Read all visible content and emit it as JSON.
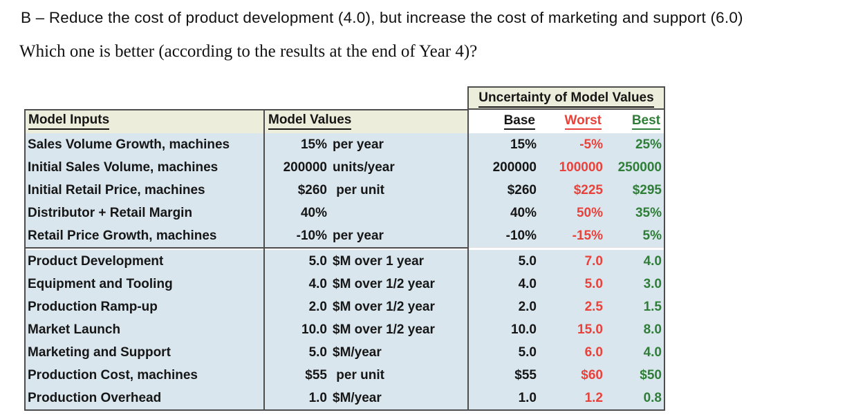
{
  "heading": {
    "line1": "B – Reduce the cost of product development (4.0), but increase the cost of marketing and support (6.0)",
    "line2": "Which one is better (according to the results at the end of Year 4)?"
  },
  "table": {
    "left_headers": {
      "inputs": "Model Inputs",
      "values": "Model Values"
    },
    "uncertainty": {
      "title": "Uncertainty of Model Values",
      "col_base": "Base",
      "col_worst": "Worst",
      "col_best": "Best"
    },
    "colors": {
      "worst_red": "#e8423b",
      "best_green": "#2f7e37",
      "header_beige": "#ecedda",
      "row_blue": "#d9e6ee",
      "border_dark": "#4d4d4d"
    },
    "sections": [
      {
        "rows": [
          {
            "input": "Sales Volume Growth, machines",
            "value_num": "15%",
            "value_unit": "per year",
            "base": "15%",
            "worst": "-5%",
            "best": "25%"
          },
          {
            "input": "Initial Sales Volume, machines",
            "value_num": "200000",
            "value_unit": "units/year",
            "base": "200000",
            "worst": "100000",
            "best": "250000"
          },
          {
            "input": "Initial Retail Price, machines",
            "value_num": "$260",
            "value_unit": " per unit",
            "base": "$260",
            "worst": "$225",
            "best": "$295"
          },
          {
            "input": "Distributor + Retail Margin",
            "value_num": "40%",
            "value_unit": "",
            "base": "40%",
            "worst": "50%",
            "best": "35%"
          },
          {
            "input": "Retail Price Growth, machines",
            "value_num": "-10%",
            "value_unit": "per year",
            "base": "-10%",
            "worst": "-15%",
            "best": "5%"
          }
        ]
      },
      {
        "rows": [
          {
            "input": "Product Development",
            "value_num": "5.0",
            "value_unit": "$M over 1 year",
            "base": "5.0",
            "worst": "7.0",
            "best": "4.0"
          },
          {
            "input": "Equipment and Tooling",
            "value_num": "4.0",
            "value_unit": "$M over 1/2 year",
            "base": "4.0",
            "worst": "5.0",
            "best": "3.0"
          },
          {
            "input": "Production Ramp-up",
            "value_num": "2.0",
            "value_unit": "$M over 1/2 year",
            "base": "2.0",
            "worst": "2.5",
            "best": "1.5"
          },
          {
            "input": "Market Launch",
            "value_num": "10.0",
            "value_unit": "$M over 1/2 year",
            "base": "10.0",
            "worst": "15.0",
            "best": "8.0"
          },
          {
            "input": "Marketing and Support",
            "value_num": "5.0",
            "value_unit": "$M/year",
            "base": "5.0",
            "worst": "6.0",
            "best": "4.0"
          },
          {
            "input": "Production Cost, machines",
            "value_num": "$55",
            "value_unit": " per unit",
            "base": "$55",
            "worst": "$60",
            "best": "$50"
          },
          {
            "input": "Production Overhead",
            "value_num": "1.0",
            "value_unit": "$M/year",
            "base": "1.0",
            "worst": "1.2",
            "best": "0.8"
          }
        ]
      }
    ]
  }
}
